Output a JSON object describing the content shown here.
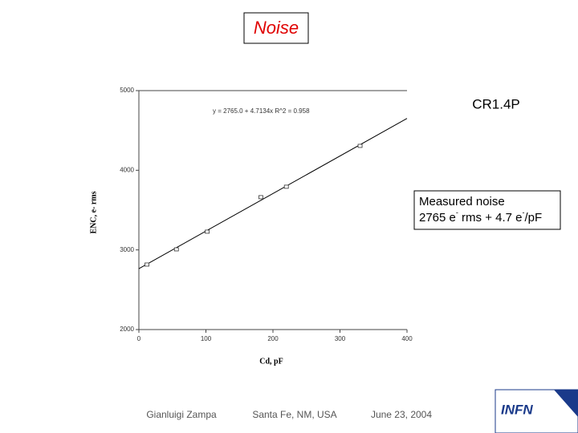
{
  "title": "Noise",
  "subtitle": "CR1.4P",
  "note": {
    "line1": "Measured noise",
    "line2": [
      "2765 e",
      "-",
      " rms + 4.7 e",
      "-",
      "/pF"
    ]
  },
  "footer": {
    "author": "Gianluigi Zampa",
    "place": "Santa Fe, NM, USA",
    "date": "June 23, 2004"
  },
  "logo": "INFN",
  "chart_data": {
    "type": "scatter",
    "x_label": "Cd, pF",
    "y_label": "ENC, e- rms",
    "x": [
      12,
      56,
      102,
      182,
      220,
      330
    ],
    "values": [
      2816,
      3007,
      3229,
      3662,
      3793,
      4306
    ],
    "color": "#333333",
    "trend": {
      "intercept": 2765.0,
      "slope": 4.7134,
      "label": "y = 2765.0 + 4.7134x  R^2 = 0.958"
    },
    "xlim": [
      0,
      400
    ],
    "xticks": [
      0,
      100,
      200,
      300,
      400
    ],
    "ylim": [
      2000,
      5000
    ],
    "yticks": [
      2000,
      3000,
      4000,
      5000
    ],
    "grid": false
  }
}
